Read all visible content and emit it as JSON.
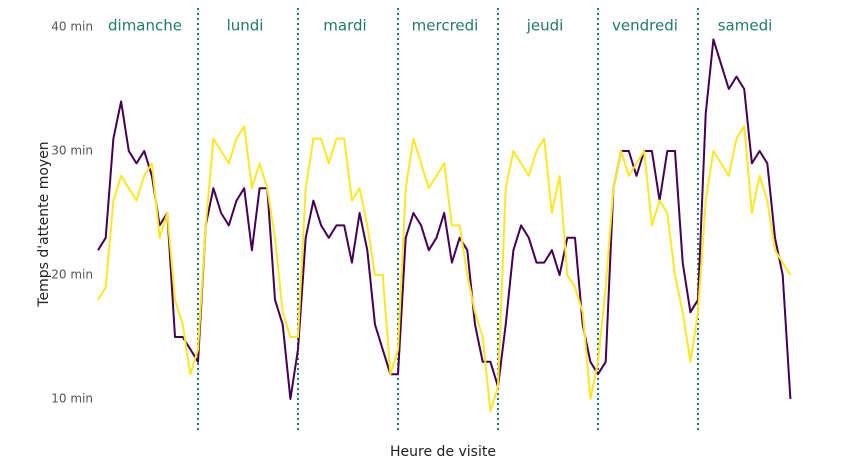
{
  "chart_data": {
    "type": "line",
    "y_label": "Temps d'attente moyen",
    "x_label": "Heure de visite",
    "groups": [
      "dimanche",
      "lundi",
      "mardi",
      "mercredi",
      "jeudi",
      "vendredi",
      "samedi"
    ],
    "ylim": [
      8,
      41
    ],
    "yticks": [
      {
        "value": 10,
        "label": "10 min"
      },
      {
        "value": 20,
        "label": "20 min"
      },
      {
        "value": 30,
        "label": "30 min"
      },
      {
        "value": 40,
        "label": "40 min"
      }
    ],
    "grid": false,
    "series": [
      {
        "color": "#440154",
        "values": [
          22,
          23,
          31,
          34,
          30,
          29,
          30,
          28,
          24,
          25,
          15,
          15,
          14,
          13,
          24,
          27,
          25,
          24,
          26,
          27,
          22,
          27,
          27,
          18,
          16,
          10,
          14,
          23,
          26,
          24,
          23,
          24,
          24,
          21,
          25,
          22,
          16,
          14,
          12,
          12,
          23,
          25,
          24,
          22,
          23,
          25,
          21,
          23,
          22,
          16,
          13,
          13,
          11,
          16,
          22,
          24,
          23,
          21,
          21,
          22,
          20,
          23,
          23,
          16,
          13,
          12,
          13,
          27,
          30,
          30,
          28,
          30,
          30,
          26,
          30,
          30,
          21,
          17,
          18,
          33,
          39,
          37,
          35,
          36,
          35,
          29,
          30,
          29,
          23,
          20,
          10
        ]
      },
      {
        "color": "#fde725",
        "values": [
          18,
          19,
          26,
          28,
          27,
          26,
          28,
          29,
          23,
          25,
          18,
          16,
          12,
          14,
          24,
          31,
          30,
          29,
          31,
          32,
          27,
          29,
          27,
          23,
          17,
          15,
          15,
          27,
          31,
          31,
          29,
          31,
          31,
          26,
          27,
          24,
          20,
          20,
          12,
          14,
          27,
          31,
          29,
          27,
          28,
          29,
          24,
          24,
          20,
          17,
          15,
          9,
          11,
          27,
          30,
          29,
          28,
          30,
          31,
          25,
          28,
          20,
          19,
          17,
          10,
          13,
          19,
          27,
          30,
          28,
          29,
          30,
          24,
          26,
          25,
          20,
          17,
          13,
          17,
          26,
          30,
          29,
          28,
          31,
          32,
          25,
          28,
          26,
          22,
          21,
          20
        ]
      }
    ]
  }
}
